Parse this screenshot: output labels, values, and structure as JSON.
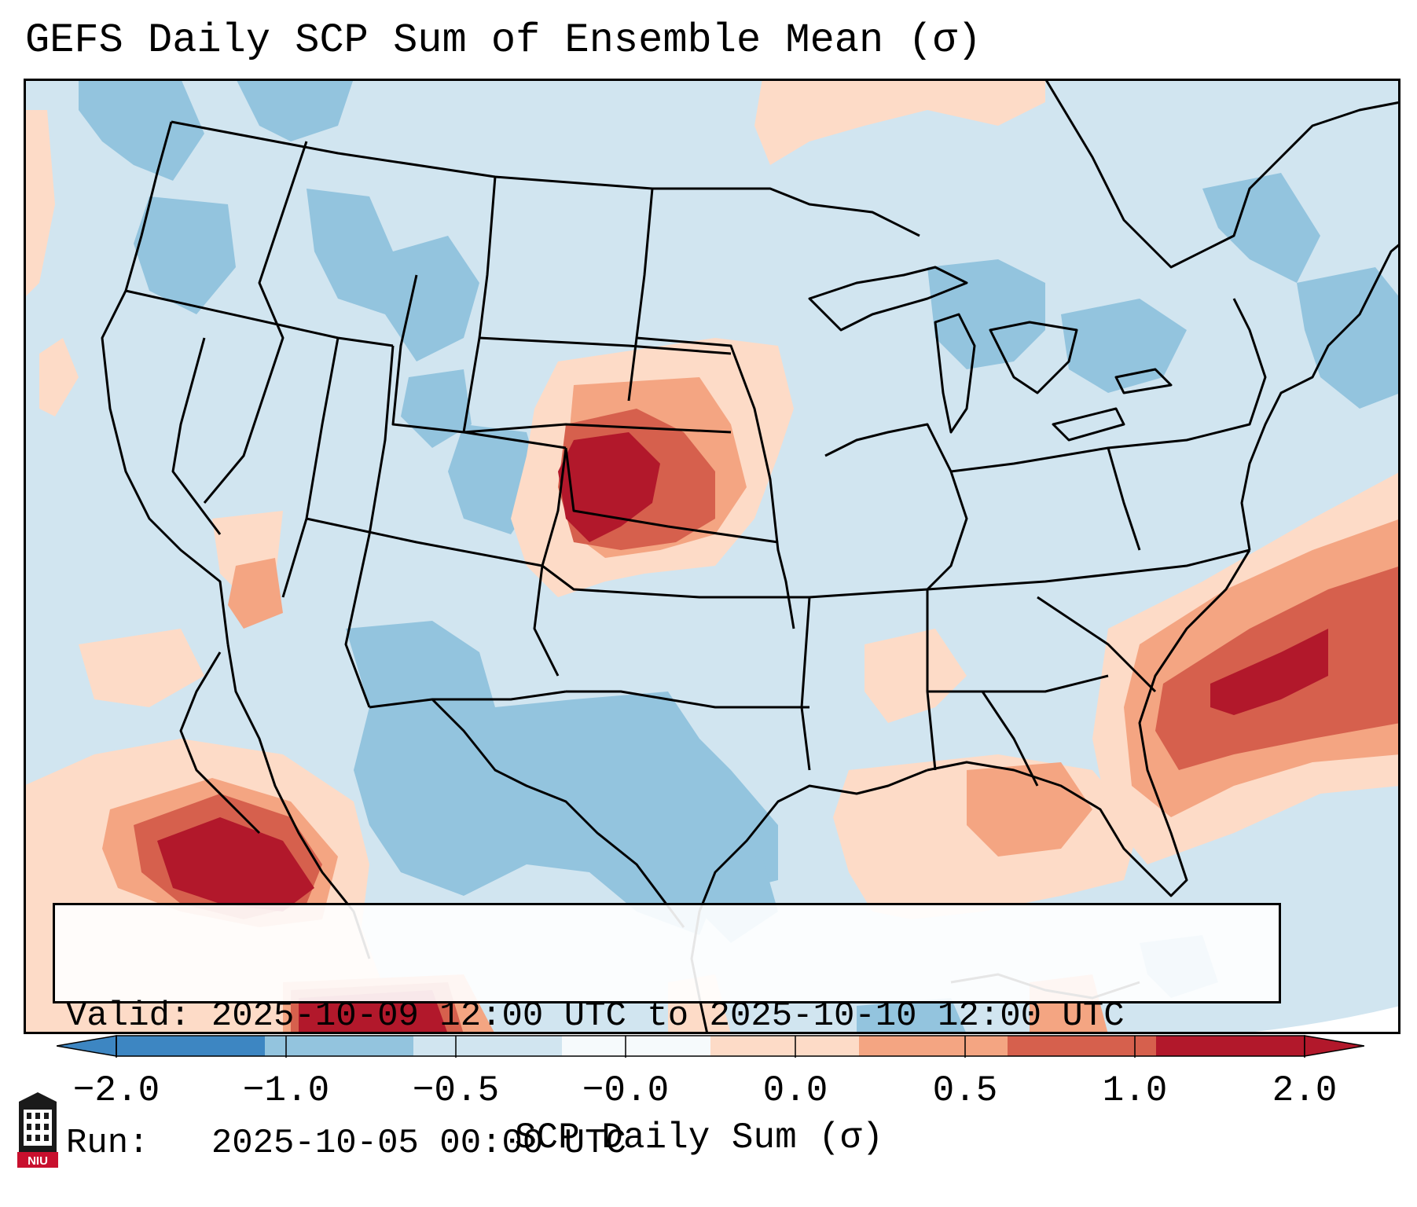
{
  "title": "GEFS Daily SCP Sum of Ensemble Mean (σ)",
  "info": {
    "valid_label": "Valid:",
    "valid_value": "2025-10-09 12:00 UTC to 2025-10-10 12:00 UTC",
    "run_label": "Run:",
    "run_value": "2025-10-05 00:00 UTC"
  },
  "colorbar": {
    "label": "SCP Daily Sum (σ)",
    "ticks": [
      "−2.0",
      "−1.0",
      "−0.5",
      "−0.0",
      "0.0",
      "0.5",
      "1.0",
      "2.0"
    ],
    "bin_colors": [
      "#3d86c2",
      "#93c4de",
      "#d1e5f0",
      "#f6fafc",
      "#fddbc7",
      "#f4a582",
      "#d6604d",
      "#b2182b"
    ],
    "extend": "both"
  },
  "map": {
    "projection": "Lambert Conformal CONUS",
    "background_color": "#d1e5f0",
    "features": [
      "US state borders",
      "coastlines",
      "Great Lakes",
      "Mexico",
      "Cuba / Caribbean"
    ],
    "anomaly_regions": [
      {
        "name": "Central Plains (E Colorado / Kansas / Nebraska)",
        "level": "2.0",
        "color": "#b2182b"
      },
      {
        "name": "Kansas / Nebraska surrounding",
        "level": "1.0",
        "color": "#d6604d"
      },
      {
        "name": "Western Atlantic off Southeast coast",
        "level": "2.0",
        "color": "#b2182b"
      },
      {
        "name": "Gulf of California / NW Mexico",
        "level": "2.0",
        "color": "#b2182b"
      },
      {
        "name": "Central Gulf of Mexico",
        "level": "0.5",
        "color": "#f4a582"
      },
      {
        "name": "Texas / Mexico interior",
        "level": "−1.0",
        "color": "#93c4de"
      },
      {
        "name": "Pacific Northwest",
        "level": "−1.0",
        "color": "#93c4de"
      }
    ]
  },
  "logo": {
    "text": "NIU"
  }
}
